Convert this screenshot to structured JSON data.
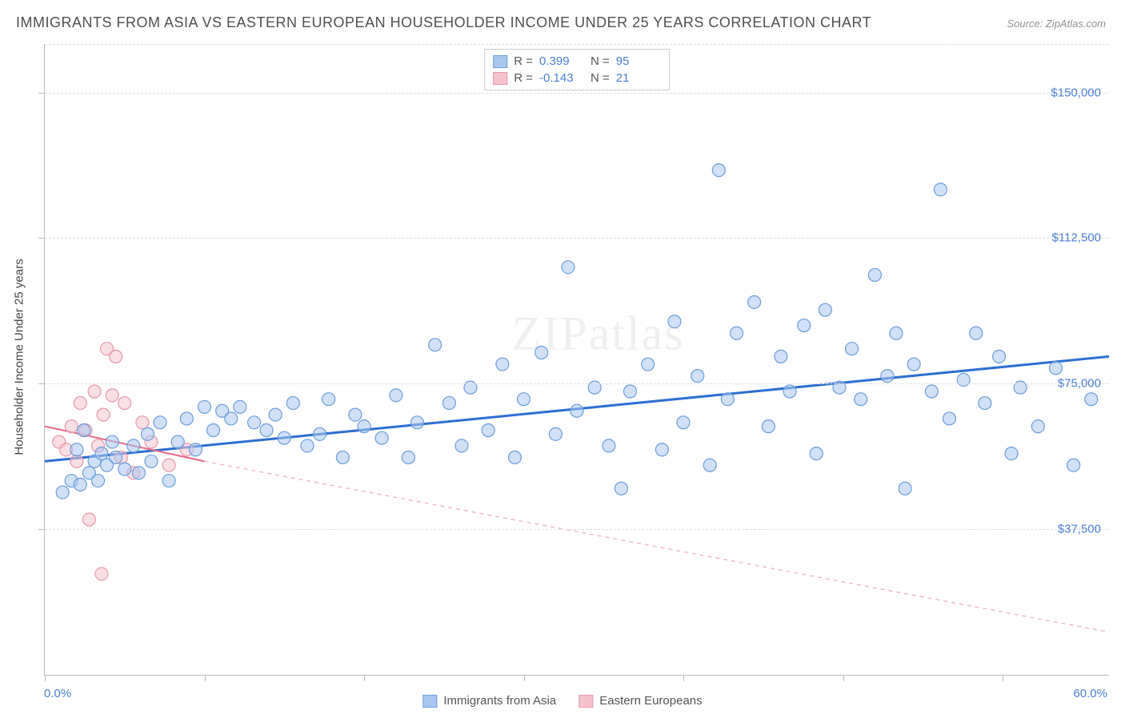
{
  "title": "IMMIGRANTS FROM ASIA VS EASTERN EUROPEAN HOUSEHOLDER INCOME UNDER 25 YEARS CORRELATION CHART",
  "source": "Source: ZipAtlas.com",
  "ylabel": "Householder Income Under 25 years",
  "watermark": "ZIPatlas",
  "chart": {
    "type": "scatter",
    "xlim": [
      0,
      60
    ],
    "ylim": [
      0,
      162500
    ],
    "xtick_labels": {
      "0": "0.0%",
      "60": "60.0%"
    },
    "xtick_positions": [
      0,
      9,
      18,
      27,
      36,
      45,
      54
    ],
    "ytick_labels": {
      "37500": "$37,500",
      "75000": "$75,000",
      "112500": "$112,500",
      "150000": "$150,000"
    },
    "ytick_positions": [
      37500,
      75000,
      112500,
      150000
    ],
    "grid_color": "#dddddd",
    "background_color": "#ffffff",
    "marker_radius": 8,
    "marker_stroke_width": 1.2,
    "series": [
      {
        "name": "Immigrants from Asia",
        "fill_color": "#a9c7ee",
        "stroke_color": "#6b9edc",
        "fill_opacity": 0.55,
        "R": "0.399",
        "N": "95",
        "trend": {
          "x1": 0,
          "y1": 55000,
          "x2": 60,
          "y2": 82000,
          "color": "#2d6fd2",
          "width": 3,
          "dash": "none"
        },
        "points": [
          [
            1,
            47000
          ],
          [
            1.5,
            50000
          ],
          [
            1.8,
            58000
          ],
          [
            2,
            49000
          ],
          [
            2.2,
            63000
          ],
          [
            2.5,
            52000
          ],
          [
            2.8,
            55000
          ],
          [
            3,
            50000
          ],
          [
            3.2,
            57000
          ],
          [
            3.5,
            54000
          ],
          [
            3.8,
            60000
          ],
          [
            4,
            56000
          ],
          [
            4.5,
            53000
          ],
          [
            5,
            59000
          ],
          [
            5.3,
            52000
          ],
          [
            5.8,
            62000
          ],
          [
            6,
            55000
          ],
          [
            6.5,
            65000
          ],
          [
            7,
            50000
          ],
          [
            7.5,
            60000
          ],
          [
            8,
            66000
          ],
          [
            8.5,
            58000
          ],
          [
            9,
            69000
          ],
          [
            9.5,
            63000
          ],
          [
            10,
            68000
          ],
          [
            10.5,
            66000
          ],
          [
            11,
            69000
          ],
          [
            11.8,
            65000
          ],
          [
            12.5,
            63000
          ],
          [
            13,
            67000
          ],
          [
            13.5,
            61000
          ],
          [
            14,
            70000
          ],
          [
            14.8,
            59000
          ],
          [
            15.5,
            62000
          ],
          [
            16,
            71000
          ],
          [
            16.8,
            56000
          ],
          [
            17.5,
            67000
          ],
          [
            18,
            64000
          ],
          [
            19,
            61000
          ],
          [
            19.8,
            72000
          ],
          [
            20.5,
            56000
          ],
          [
            21,
            65000
          ],
          [
            22,
            85000
          ],
          [
            22.8,
            70000
          ],
          [
            23.5,
            59000
          ],
          [
            24,
            74000
          ],
          [
            25,
            63000
          ],
          [
            25.8,
            80000
          ],
          [
            26.5,
            56000
          ],
          [
            27,
            71000
          ],
          [
            28,
            83000
          ],
          [
            28.8,
            62000
          ],
          [
            29.5,
            105000
          ],
          [
            30,
            68000
          ],
          [
            31,
            74000
          ],
          [
            31.8,
            59000
          ],
          [
            32.5,
            48000
          ],
          [
            33,
            73000
          ],
          [
            34,
            80000
          ],
          [
            34.8,
            58000
          ],
          [
            35.5,
            91000
          ],
          [
            36,
            65000
          ],
          [
            36.8,
            77000
          ],
          [
            37.5,
            54000
          ],
          [
            38,
            130000
          ],
          [
            38.5,
            71000
          ],
          [
            39,
            88000
          ],
          [
            40,
            96000
          ],
          [
            40.8,
            64000
          ],
          [
            41.5,
            82000
          ],
          [
            42,
            73000
          ],
          [
            42.8,
            90000
          ],
          [
            43.5,
            57000
          ],
          [
            44,
            94000
          ],
          [
            44.8,
            74000
          ],
          [
            45.5,
            84000
          ],
          [
            46,
            71000
          ],
          [
            46.8,
            103000
          ],
          [
            47.5,
            77000
          ],
          [
            48,
            88000
          ],
          [
            48.5,
            48000
          ],
          [
            49,
            80000
          ],
          [
            50,
            73000
          ],
          [
            50.5,
            125000
          ],
          [
            51,
            66000
          ],
          [
            51.8,
            76000
          ],
          [
            52.5,
            88000
          ],
          [
            53,
            70000
          ],
          [
            53.8,
            82000
          ],
          [
            54.5,
            57000
          ],
          [
            55,
            74000
          ],
          [
            56,
            64000
          ],
          [
            57,
            79000
          ],
          [
            58,
            54000
          ],
          [
            59,
            71000
          ]
        ]
      },
      {
        "name": "Eastern Europeans",
        "fill_color": "#f4c2cd",
        "stroke_color": "#e697ab",
        "fill_opacity": 0.55,
        "R": "-0.143",
        "N": "21",
        "trend": {
          "x1": 0,
          "y1": 64000,
          "x2": 9,
          "y2": 55000,
          "color": "#e46d8a",
          "width": 2,
          "dash": "none"
        },
        "trend_ext": {
          "x1": 9,
          "y1": 55000,
          "x2": 60,
          "y2": 11000,
          "color": "#e8b0bc",
          "width": 1.2,
          "dash": "5,5"
        },
        "points": [
          [
            0.8,
            60000
          ],
          [
            1.2,
            58000
          ],
          [
            1.5,
            64000
          ],
          [
            1.8,
            55000
          ],
          [
            2,
            70000
          ],
          [
            2.3,
            63000
          ],
          [
            2.5,
            40000
          ],
          [
            2.8,
            73000
          ],
          [
            3,
            59000
          ],
          [
            3.3,
            67000
          ],
          [
            3.5,
            84000
          ],
          [
            3.8,
            72000
          ],
          [
            4,
            82000
          ],
          [
            4.3,
            56000
          ],
          [
            4.5,
            70000
          ],
          [
            5,
            52000
          ],
          [
            5.5,
            65000
          ],
          [
            6,
            60000
          ],
          [
            3.2,
            26000
          ],
          [
            7,
            54000
          ],
          [
            8,
            58000
          ]
        ]
      }
    ]
  },
  "legend_bottom": [
    {
      "label": "Immigrants from Asia",
      "fill": "#a9c7ee",
      "stroke": "#6b9edc"
    },
    {
      "label": "Eastern Europeans",
      "fill": "#f4c2cd",
      "stroke": "#e697ab"
    }
  ]
}
